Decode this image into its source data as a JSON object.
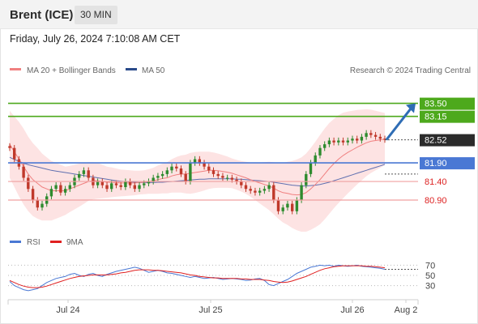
{
  "header": {
    "instrument": "Brent (ICE)",
    "timeframe": "30 MIN",
    "datetime": "Friday, July 26, 2024 7:10:08 AM CET"
  },
  "legend": {
    "ma20_label": "MA 20 + Bollinger Bands",
    "ma50_label": "MA 50",
    "credit": "Research © 2024 Trading Central",
    "rsi_label": "RSI",
    "ma9_label": "9MA"
  },
  "colors": {
    "resistance": "#4da91c",
    "support": "#4a78d4",
    "pivot_line": "#f0a0a0",
    "current": "#2b2b2b",
    "pivot_label": "#4a78d4",
    "arrow": "#2f6db5",
    "bollinger_fill": "#fde3e3",
    "ma20": "#f08080",
    "ma50": "#6070b0",
    "candle_up": "#2e8b2e",
    "candle_down": "#c0392b",
    "rsi": "#4a78d4",
    "rsi_ma": "#e02020"
  },
  "chart_data": {
    "type": "candlestick",
    "price_range": [
      80.4,
      84.1
    ],
    "x_tick_labels": [
      "Jul 24",
      "Jul 25",
      "Jul 26",
      "Aug 2"
    ],
    "levels": [
      {
        "label": "83.50",
        "value": 83.5,
        "kind": "resistance"
      },
      {
        "label": "83.15",
        "value": 83.15,
        "kind": "resistance"
      },
      {
        "label": "82.52",
        "value": 82.52,
        "kind": "current"
      },
      {
        "label": "81.90",
        "value": 81.9,
        "kind": "pivot"
      },
      {
        "label": "81.40",
        "value": 81.4,
        "kind": "support"
      },
      {
        "label": "80.90",
        "value": 80.9,
        "kind": "support"
      }
    ],
    "closes": [
      82.3,
      82.0,
      81.8,
      81.5,
      81.2,
      80.9,
      80.7,
      80.8,
      81.0,
      81.2,
      81.3,
      81.1,
      81.2,
      81.3,
      81.5,
      81.6,
      81.7,
      81.5,
      81.3,
      81.4,
      81.3,
      81.2,
      81.35,
      81.3,
      81.25,
      81.4,
      81.3,
      81.2,
      81.3,
      81.35,
      81.4,
      81.5,
      81.55,
      81.6,
      81.7,
      81.8,
      81.75,
      81.6,
      81.4,
      81.9,
      82.0,
      81.9,
      81.8,
      81.7,
      81.6,
      81.55,
      81.5,
      81.5,
      81.45,
      81.4,
      81.3,
      81.2,
      81.15,
      81.1,
      81.15,
      81.2,
      81.3,
      80.9,
      80.6,
      80.7,
      80.8,
      80.6,
      80.9,
      81.3,
      81.6,
      81.9,
      82.1,
      82.3,
      82.4,
      82.5,
      82.45,
      82.5,
      82.45,
      82.5,
      82.55,
      82.5,
      82.6,
      82.7,
      82.65,
      82.6,
      82.55,
      82.52
    ],
    "ma20": [
      82.4,
      82.2,
      82.0,
      81.8,
      81.6,
      81.45,
      81.35,
      81.25,
      81.2,
      81.15,
      81.15,
      81.15,
      81.15,
      81.2,
      81.25,
      81.3,
      81.35,
      81.4,
      81.42,
      81.42,
      81.4,
      81.38,
      81.38,
      81.37,
      81.36,
      81.36,
      81.36,
      81.36,
      81.37,
      81.38,
      81.4,
      81.42,
      81.45,
      81.48,
      81.5,
      81.55,
      81.58,
      81.6,
      81.6,
      81.62,
      81.64,
      81.66,
      81.68,
      81.7,
      81.7,
      81.69,
      81.67,
      81.65,
      81.62,
      81.58,
      81.54,
      81.5,
      81.45,
      81.4,
      81.36,
      81.32,
      81.28,
      81.22,
      81.15,
      81.1,
      81.08,
      81.05,
      81.04,
      81.05,
      81.1,
      81.2,
      81.32,
      81.45,
      81.6,
      81.75,
      81.88,
      82.0,
      82.1,
      82.18,
      82.25,
      82.32,
      82.38,
      82.44,
      82.48,
      82.5,
      82.52,
      82.54
    ],
    "ma50": [
      82.05,
      81.99,
      81.94,
      81.89,
      81.85,
      81.82,
      81.79,
      81.76,
      81.73,
      81.7,
      81.68,
      81.66,
      81.64,
      81.62,
      81.6,
      81.58,
      81.56,
      81.54,
      81.52,
      81.5,
      81.48,
      81.46,
      81.44,
      81.42,
      81.41,
      81.4,
      81.39,
      81.38,
      81.37,
      81.37,
      81.37,
      81.37,
      81.38,
      81.38,
      81.39,
      81.4,
      81.41,
      81.42,
      81.43,
      81.44,
      81.45,
      81.46,
      81.46,
      81.47,
      81.47,
      81.47,
      81.47,
      81.47,
      81.47,
      81.46,
      81.46,
      81.45,
      81.44,
      81.43,
      81.42,
      81.41,
      81.4,
      81.38,
      81.36,
      81.34,
      81.32,
      81.3,
      81.29,
      81.28,
      81.28,
      81.29,
      81.3,
      81.32,
      81.35,
      81.38,
      81.42,
      81.46,
      81.5,
      81.54,
      81.58,
      81.62,
      81.66,
      81.7,
      81.74,
      81.78,
      81.82,
      81.86
    ],
    "band_width": [
      0.9,
      0.95,
      1.0,
      1.02,
      1.0,
      0.98,
      0.95,
      0.9,
      0.85,
      0.8,
      0.75,
      0.7,
      0.65,
      0.62,
      0.6,
      0.58,
      0.55,
      0.52,
      0.5,
      0.48,
      0.45,
      0.42,
      0.4,
      0.38,
      0.36,
      0.35,
      0.34,
      0.33,
      0.32,
      0.32,
      0.33,
      0.35,
      0.38,
      0.4,
      0.42,
      0.45,
      0.48,
      0.5,
      0.52,
      0.55,
      0.55,
      0.54,
      0.52,
      0.5,
      0.48,
      0.46,
      0.44,
      0.42,
      0.4,
      0.4,
      0.41,
      0.43,
      0.46,
      0.5,
      0.55,
      0.6,
      0.65,
      0.7,
      0.75,
      0.8,
      0.85,
      0.9,
      0.95,
      1.0,
      1.05,
      1.1,
      1.15,
      1.2,
      1.22,
      1.22,
      1.2,
      1.18,
      1.15,
      1.1,
      1.05,
      1.0,
      0.95,
      0.9,
      0.85,
      0.8,
      0.75,
      0.7
    ],
    "rsi": {
      "ticks": [
        70,
        50,
        30
      ],
      "range": [
        15,
        85
      ],
      "values": [
        38,
        30,
        26,
        22,
        20,
        22,
        24,
        30,
        36,
        40,
        44,
        46,
        48,
        52,
        54,
        50,
        48,
        52,
        54,
        50,
        48,
        52,
        55,
        58,
        60,
        62,
        64,
        66,
        64,
        60,
        56,
        58,
        60,
        58,
        55,
        54,
        52,
        50,
        48,
        46,
        48,
        46,
        44,
        45,
        46,
        44,
        42,
        43,
        44,
        43,
        42,
        40,
        41,
        43,
        44,
        40,
        32,
        30,
        34,
        38,
        42,
        48,
        54,
        58,
        62,
        66,
        68,
        70,
        69,
        70,
        68,
        70,
        69,
        68,
        69,
        70,
        68,
        67,
        66,
        65,
        64,
        62
      ],
      "ma9": [
        40,
        36,
        32,
        29,
        27,
        26,
        26,
        27,
        29,
        32,
        35,
        38,
        41,
        44,
        46,
        48,
        49,
        50,
        51,
        51,
        51,
        51,
        52,
        53,
        55,
        56,
        58,
        60,
        61,
        61,
        61,
        60,
        60,
        59,
        58,
        57,
        56,
        55,
        53,
        51,
        50,
        48,
        47,
        46,
        45,
        45,
        44,
        44,
        44,
        44,
        43,
        43,
        42,
        42,
        42,
        41,
        40,
        38,
        37,
        36,
        37,
        39,
        42,
        45,
        48,
        52,
        56,
        60,
        63,
        65,
        67,
        68,
        69,
        69,
        69,
        69,
        69,
        68,
        68,
        67,
        66,
        65
      ]
    }
  }
}
